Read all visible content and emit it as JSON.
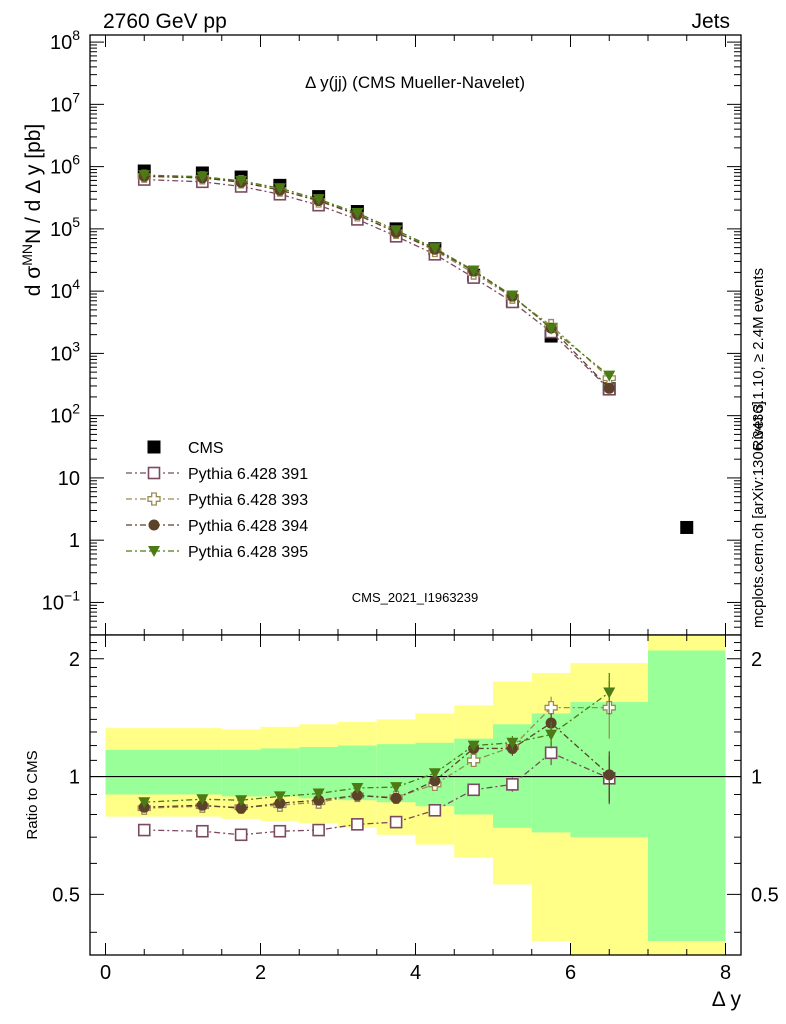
{
  "header": {
    "left": "2760 GeV pp",
    "right": "Jets"
  },
  "side_labels": {
    "events": "Rivet 3.1.10, ≥ 2.4M events",
    "source": "mcplots.cern.ch [arXiv:1306.3436]"
  },
  "watermark": "CMS_2021_I1963239",
  "colors": {
    "cms": "#000000",
    "p391": "#7b4a5f",
    "p393": "#9c8a52",
    "p394": "#5c4228",
    "p395": "#4c7a14",
    "band_inner": "#99ff99",
    "band_outer": "#ffff88"
  },
  "chart_data": [
    {
      "type": "scatter",
      "title": "Δ y(jj) (CMS Mueller-Navelet)",
      "xlabel": "Δ y",
      "ylabel": "d σ^MN / d Δ y [pb]",
      "ylabel_parts": {
        "pre": "d σ",
        "sup": "MN",
        "post": "N / d Δ y [pb]"
      },
      "yscale": "log",
      "xlim": [
        -0.2,
        8.2
      ],
      "ylim": [
        0.03,
        130000000.0
      ],
      "ytick_labels": [
        {
          "value": 0.1,
          "base": "10",
          "exp": "−1"
        },
        {
          "value": 1,
          "base": "1",
          "exp": ""
        },
        {
          "value": 10,
          "base": "10",
          "exp": ""
        },
        {
          "value": 100,
          "base": "10",
          "exp": "2"
        },
        {
          "value": 1000,
          "base": "10",
          "exp": "3"
        },
        {
          "value": 10000,
          "base": "10",
          "exp": "4"
        },
        {
          "value": 100000,
          "base": "10",
          "exp": "5"
        },
        {
          "value": 1000000,
          "base": "10",
          "exp": "6"
        },
        {
          "value": 10000000,
          "base": "10",
          "exp": "7"
        },
        {
          "value": 100000000,
          "base": "10",
          "exp": "8"
        }
      ],
      "legend_position": "center-left",
      "x": [
        0.5,
        1.25,
        1.75,
        2.25,
        2.75,
        3.25,
        3.75,
        4.25,
        4.75,
        5.25,
        5.75,
        6.5,
        7.5
      ],
      "series": [
        {
          "name": "CMS",
          "marker": "square-filled",
          "line": "none",
          "values": [
            850000,
            790000,
            680000,
            500000,
            330000,
            190000,
            100000,
            48000,
            18000,
            7000,
            1900,
            270,
            1.6
          ]
        },
        {
          "name": "Pythia 6.428 391",
          "marker": "square-open",
          "line": "dashdot",
          "values": [
            620000,
            570000,
            480000,
            360000,
            240000,
            142000,
            76000,
            39000,
            16500,
            6700,
            2200,
            265
          ]
        },
        {
          "name": "Pythia 6.428 393",
          "marker": "cross-open",
          "line": "dashdot",
          "values": [
            700000,
            660000,
            570000,
            420000,
            280000,
            168000,
            88000,
            45000,
            19500,
            8000,
            2800,
            400
          ]
        },
        {
          "name": "Pythia 6.428 394",
          "marker": "circle-filled",
          "line": "dashdot",
          "values": [
            700000,
            660000,
            560000,
            420000,
            285000,
            170000,
            88000,
            47000,
            21000,
            8300,
            2550,
            275
          ]
        },
        {
          "name": "Pythia 6.428 395",
          "marker": "triangle-down-filled",
          "line": "dashdot",
          "values": [
            730000,
            690000,
            590000,
            450000,
            300000,
            180000,
            95000,
            49000,
            21500,
            8500,
            2500,
            440
          ]
        }
      ]
    },
    {
      "type": "scatter",
      "title": "",
      "xlabel": "Δ y",
      "ylabel": "Ratio to CMS",
      "xlim": [
        -0.2,
        8.2
      ],
      "ylim": [
        0.35,
        2.3
      ],
      "xticks": [
        0,
        2,
        4,
        6,
        8
      ],
      "yticks": [
        0.5,
        1,
        2
      ],
      "reference_line": 1,
      "bands": {
        "edges": [
          0,
          1,
          1.5,
          2,
          2.5,
          3,
          3.5,
          4,
          4.5,
          5,
          5.5,
          6,
          7,
          8
        ],
        "inner_low": [
          0.9,
          0.9,
          0.89,
          0.89,
          0.88,
          0.87,
          0.86,
          0.84,
          0.8,
          0.74,
          0.72,
          0.7,
          0.38
        ],
        "inner_high": [
          1.17,
          1.17,
          1.17,
          1.18,
          1.19,
          1.2,
          1.21,
          1.22,
          1.25,
          1.36,
          1.45,
          1.55,
          2.1
        ],
        "outer_low": [
          0.79,
          0.79,
          0.78,
          0.77,
          0.76,
          0.74,
          0.71,
          0.67,
          0.62,
          0.53,
          0.38,
          0.33,
          0.33
        ],
        "outer_high": [
          1.33,
          1.33,
          1.32,
          1.34,
          1.36,
          1.38,
          1.4,
          1.45,
          1.52,
          1.75,
          1.84,
          1.95,
          2.3
        ]
      },
      "x": [
        0.5,
        1.25,
        1.75,
        2.25,
        2.75,
        3.25,
        3.75,
        4.25,
        4.75,
        5.25,
        5.75,
        6.5
      ],
      "series": [
        {
          "name": "Pythia 6.428 391",
          "values": [
            0.73,
            0.725,
            0.71,
            0.725,
            0.73,
            0.755,
            0.765,
            0.82,
            0.925,
            0.955,
            1.15,
            0.99
          ],
          "errors": [
            0.01,
            0.01,
            0.01,
            0.01,
            0.01,
            0.01,
            0.01,
            0.015,
            0.02,
            0.04,
            0.08,
            0.14
          ]
        },
        {
          "name": "Pythia 6.428 393",
          "values": [
            0.83,
            0.84,
            0.835,
            0.845,
            0.86,
            0.895,
            0.885,
            0.955,
            1.1,
            1.19,
            1.5,
            1.5
          ],
          "errors": [
            0.01,
            0.01,
            0.01,
            0.01,
            0.01,
            0.01,
            0.015,
            0.02,
            0.03,
            0.05,
            0.1,
            0.25
          ]
        },
        {
          "name": "Pythia 6.428 394",
          "values": [
            0.835,
            0.845,
            0.83,
            0.855,
            0.87,
            0.895,
            0.88,
            0.975,
            1.18,
            1.18,
            1.37,
            1.01
          ],
          "errors": [
            0.01,
            0.01,
            0.01,
            0.01,
            0.01,
            0.015,
            0.015,
            0.02,
            0.03,
            0.05,
            0.08,
            0.15
          ]
        },
        {
          "name": "Pythia 6.428 395",
          "values": [
            0.86,
            0.875,
            0.87,
            0.89,
            0.905,
            0.935,
            0.94,
            1.02,
            1.2,
            1.22,
            1.28,
            1.64
          ],
          "errors": [
            0.01,
            0.01,
            0.01,
            0.01,
            0.01,
            0.015,
            0.015,
            0.02,
            0.03,
            0.05,
            0.1,
            0.2
          ]
        }
      ]
    }
  ]
}
